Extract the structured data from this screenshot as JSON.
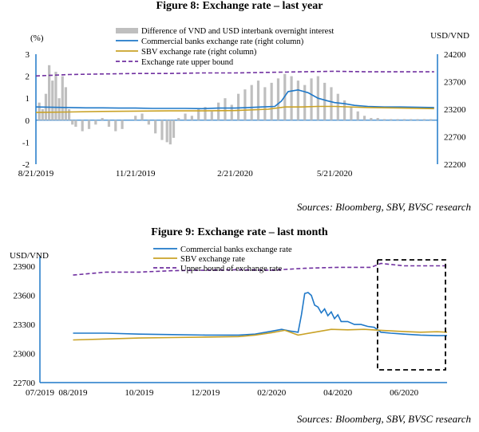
{
  "figures": {
    "fig8": {
      "title": "Figure 8: Exchange rate – last year",
      "source": "Sources: Bloomberg, SBV, BVSC research"
    },
    "fig9": {
      "title": "Figure 9: Exchange rate – last month",
      "source": "Sources: Bloomberg, SBV, BVSC research"
    }
  },
  "colors": {
    "commercial": "#1F78C8",
    "sbv": "#C9A227",
    "upper": "#7030A0",
    "bars": "#BFBFBF",
    "axis": "#1F78C8"
  },
  "chart_data": [
    {
      "type": "bar",
      "title": "Figure 8: Exchange rate – last year",
      "left_axis_label": "(%)",
      "right_axis_label": "USD/VND",
      "x_ticks": [
        "8/21/2019",
        "11/21/2019",
        "2/21/2020",
        "5/21/2020"
      ],
      "x_tick_months": [
        0,
        3,
        6,
        9
      ],
      "x_range_months": [
        0,
        12.1
      ],
      "left_ylim": [
        -2,
        3
      ],
      "left_ticks": [
        -2,
        -1,
        0,
        1,
        2,
        3
      ],
      "right_ylim": [
        22200,
        24200
      ],
      "right_ticks": [
        22200,
        22700,
        23200,
        23700,
        24200
      ],
      "legend": [
        "Difference of VND and USD interbank overnight interest",
        "Commercial banks exchange rate (right column)",
        "SBV exchange rate (right column)",
        "Exchange rate upper bound"
      ],
      "bars": {
        "name": "Difference of VND and USD interbank overnight interest",
        "x_months": [
          0.1,
          0.2,
          0.3,
          0.4,
          0.5,
          0.6,
          0.7,
          0.8,
          0.9,
          1.0,
          1.1,
          1.2,
          1.4,
          1.6,
          1.8,
          2.0,
          2.2,
          2.4,
          2.6,
          2.8,
          3.0,
          3.2,
          3.4,
          3.6,
          3.8,
          3.95,
          4.05,
          4.15,
          4.3,
          4.5,
          4.7,
          4.9,
          5.1,
          5.3,
          5.5,
          5.7,
          5.9,
          6.1,
          6.3,
          6.5,
          6.7,
          6.9,
          7.1,
          7.3,
          7.5,
          7.7,
          7.9,
          8.1,
          8.3,
          8.5,
          8.7,
          8.9,
          9.1,
          9.3,
          9.5,
          9.7,
          9.9,
          10.1,
          10.3,
          10.5,
          10.7,
          10.9,
          11.1,
          11.3,
          11.5,
          11.7,
          11.9
        ],
        "values": [
          0.8,
          0.5,
          1.2,
          2.5,
          1.8,
          2.2,
          1.0,
          2.0,
          1.5,
          0.5,
          -0.2,
          -0.3,
          -0.5,
          -0.4,
          -0.2,
          0.1,
          -0.3,
          -0.5,
          -0.4,
          0.0,
          0.2,
          0.3,
          -0.2,
          -0.6,
          -0.9,
          -1.0,
          -1.1,
          -0.8,
          0.1,
          0.3,
          0.2,
          0.5,
          0.6,
          0.4,
          0.8,
          1.0,
          0.7,
          1.2,
          1.4,
          1.6,
          1.8,
          1.5,
          1.7,
          1.9,
          2.1,
          2.0,
          1.8,
          1.6,
          1.9,
          2.0,
          1.7,
          1.5,
          1.2,
          0.9,
          0.6,
          0.4,
          0.2,
          0.1,
          0.1,
          0.05,
          0.05,
          0.05,
          0.05,
          0.05,
          0.05,
          0.05,
          0.05
        ]
      },
      "series": [
        {
          "name": "Commercial banks exchange rate (right column)",
          "axis": "right",
          "x_months": [
            0,
            0.5,
            1,
            1.5,
            2,
            2.5,
            3,
            3.5,
            4,
            4.5,
            5,
            5.5,
            6,
            6.4,
            6.8,
            7.2,
            7.4,
            7.6,
            7.9,
            8.2,
            8.5,
            8.8,
            9.0,
            9.3,
            9.6,
            10,
            10.5,
            11,
            11.5,
            12
          ],
          "values": [
            23240,
            23235,
            23230,
            23225,
            23225,
            23220,
            23220,
            23215,
            23215,
            23215,
            23210,
            23220,
            23220,
            23230,
            23240,
            23250,
            23350,
            23520,
            23550,
            23500,
            23400,
            23350,
            23320,
            23300,
            23270,
            23250,
            23240,
            23240,
            23235,
            23230
          ]
        },
        {
          "name": "SBV exchange rate (right column)",
          "axis": "right",
          "x_months": [
            0,
            1,
            2,
            3,
            4,
            5,
            6,
            7,
            7.5,
            8,
            8.5,
            9,
            10,
            11,
            12
          ],
          "values": [
            23140,
            23150,
            23160,
            23165,
            23170,
            23170,
            23175,
            23200,
            23240,
            23240,
            23250,
            23250,
            23230,
            23220,
            23210
          ]
        },
        {
          "name": "Exchange rate upper bound",
          "axis": "right",
          "x_months": [
            0,
            1,
            2,
            3,
            4,
            5,
            6,
            7,
            8,
            9,
            10,
            11,
            12
          ],
          "values": [
            23805,
            23830,
            23840,
            23850,
            23850,
            23860,
            23860,
            23870,
            23880,
            23890,
            23880,
            23880,
            23880
          ]
        }
      ]
    },
    {
      "type": "line",
      "title": "Figure 9: Exchange rate – last month",
      "ylabel": "USD/VND",
      "x_ticks": [
        "07/2019",
        "08/2019",
        "10/2019",
        "12/2019",
        "02/2020",
        "04/2020",
        "06/2020"
      ],
      "x_tick_months": [
        0,
        1,
        3,
        5,
        7,
        9,
        11
      ],
      "x_range_months": [
        0,
        12.3
      ],
      "ylim": [
        22700,
        24000
      ],
      "y_ticks": [
        22700,
        23000,
        23300,
        23600,
        23900
      ],
      "legend": [
        "Commercial banks exchange rate",
        "SBV exchange rate",
        "Upper bound of exchange rate"
      ],
      "highlight_box_months": [
        10.2,
        12.3
      ],
      "series": [
        {
          "name": "Commercial banks exchange rate",
          "x": [
            1,
            2,
            3,
            4,
            5,
            6,
            6.5,
            7,
            7.3,
            7.6,
            7.8,
            7.9,
            8.0,
            8.1,
            8.2,
            8.3,
            8.4,
            8.5,
            8.6,
            8.7,
            8.8,
            8.9,
            9.0,
            9.1,
            9.3,
            9.5,
            9.7,
            9.9,
            10.1,
            10.3,
            10.6,
            11,
            11.5,
            12,
            12.3
          ],
          "values": [
            23210,
            23210,
            23200,
            23195,
            23190,
            23190,
            23200,
            23230,
            23250,
            23230,
            23220,
            23400,
            23620,
            23630,
            23600,
            23500,
            23480,
            23420,
            23460,
            23390,
            23430,
            23360,
            23400,
            23330,
            23330,
            23300,
            23300,
            23280,
            23270,
            23220,
            23210,
            23200,
            23190,
            23185,
            23185
          ]
        },
        {
          "name": "SBV exchange rate",
          "x": [
            1,
            2,
            3,
            4,
            5,
            6,
            6.5,
            7,
            7.4,
            7.8,
            8.3,
            8.8,
            9.3,
            9.8,
            10.3,
            10.8,
            11.5,
            12,
            12.3
          ],
          "values": [
            23140,
            23150,
            23160,
            23165,
            23170,
            23175,
            23190,
            23215,
            23240,
            23190,
            23220,
            23250,
            23245,
            23250,
            23240,
            23230,
            23220,
            23225,
            23220
          ]
        },
        {
          "name": "Upper bound of exchange rate",
          "x": [
            1,
            2,
            3,
            4,
            5,
            6,
            7,
            8,
            9,
            10,
            10.3,
            11,
            12,
            12.3
          ],
          "values": [
            23810,
            23840,
            23840,
            23855,
            23860,
            23865,
            23860,
            23880,
            23890,
            23890,
            23930,
            23905,
            23905,
            23905
          ]
        }
      ]
    }
  ]
}
